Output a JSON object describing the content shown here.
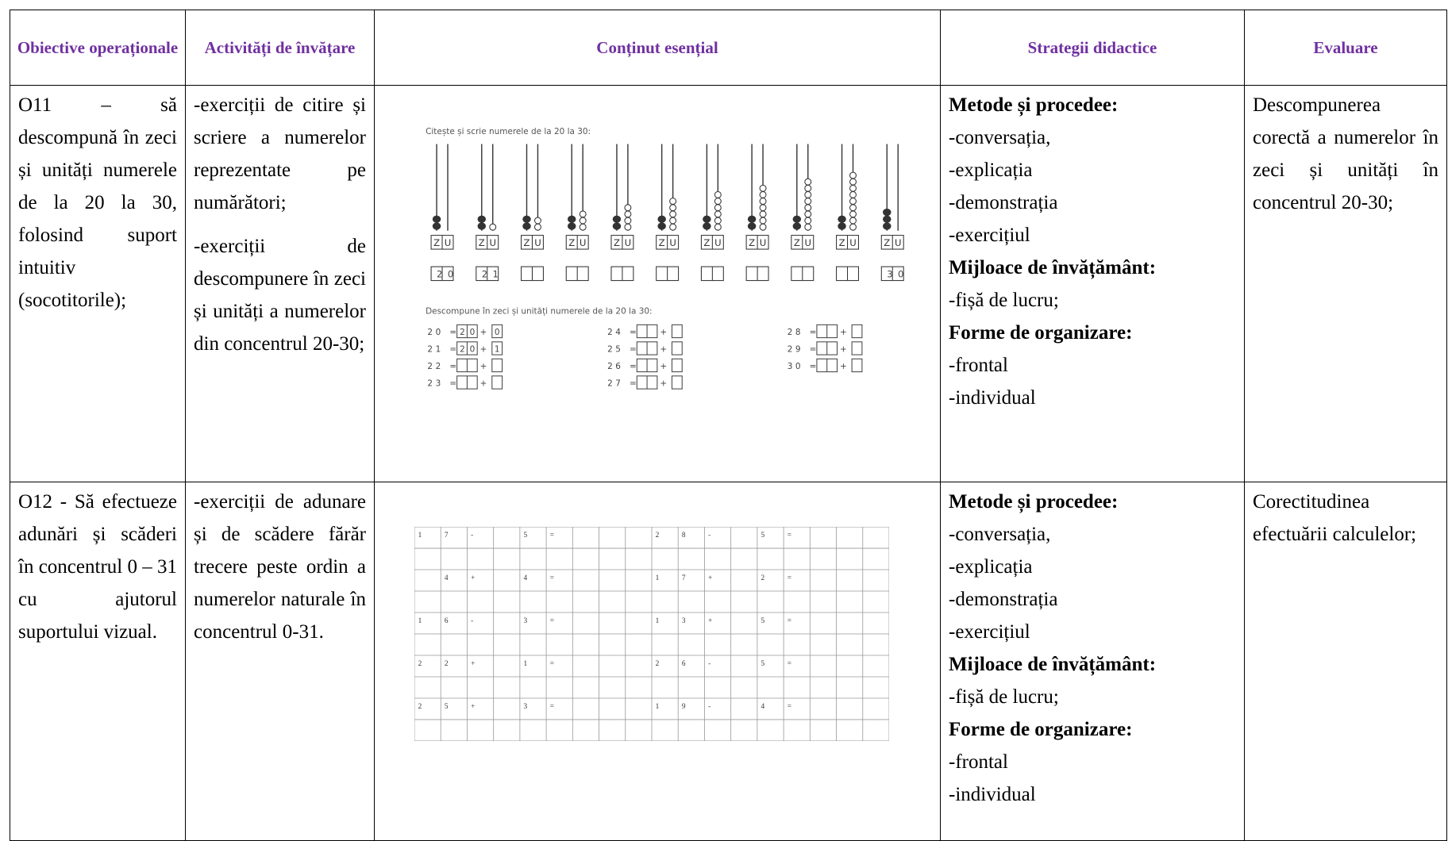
{
  "table": {
    "header": [
      "Obiective operaționale",
      "Activități de învățare",
      "Conținut esențial",
      "Strategii didactice",
      "Evaluare"
    ],
    "rows": [
      {
        "objective": "O11 – să descompună în zeci și unități numerele de la 20 la 30, folosind suport intuitiv (socotitorile);",
        "activities": [
          "-exerciții de citire și scriere a numerelor reprezentate pe numărători;",
          "-exerciții de descompunere în zeci și unități a numerelor din concentrul 20-30;"
        ],
        "content": {
          "title": "Citește și scrie numerele de la 20 la 30:",
          "labels": [
            "Z",
            "U"
          ],
          "abaci": [
            {
              "tens": 2,
              "units": 0
            },
            {
              "tens": 2,
              "units": 1
            },
            {
              "tens": 2,
              "units": 2
            },
            {
              "tens": 2,
              "units": 3
            },
            {
              "tens": 2,
              "units": 4
            },
            {
              "tens": 2,
              "units": 5
            },
            {
              "tens": 2,
              "units": 6
            },
            {
              "tens": 2,
              "units": 7
            },
            {
              "tens": 2,
              "units": 8
            },
            {
              "tens": 2,
              "units": 9
            },
            {
              "tens": 3,
              "units": 0
            }
          ],
          "written": [
            "20",
            "21",
            null,
            null,
            null,
            null,
            null,
            null,
            null,
            null,
            "30"
          ],
          "subtitle": "Descompune în zeci și unități numerele de la 20 la 30:",
          "equals": "=",
          "plus": "+",
          "equations": [
            {
              "number": "20",
              "tens": "20",
              "units": "0"
            },
            {
              "number": "21",
              "tens": "20",
              "units": "1"
            },
            {
              "number": "22"
            },
            {
              "number": "23"
            },
            {
              "number": "24"
            },
            {
              "number": "25"
            },
            {
              "number": "26"
            },
            {
              "number": "27"
            },
            {
              "number": "28"
            },
            {
              "number": "29"
            },
            {
              "number": "30"
            }
          ]
        },
        "strategies": [
          {
            "heading": "Metode și procedee:",
            "items": [
              "-conversația,",
              "-explicația",
              "-demonstrația",
              "-exercițiul"
            ]
          },
          {
            "heading": "Mijloace de învățământ:",
            "items": [
              "-fișă de lucru;"
            ]
          },
          {
            "heading": "Forme de organizare:",
            "items": [
              "-frontal",
              "-individual"
            ]
          }
        ],
        "evaluation": "Descompunerea corectă a numerelor în zeci și unități în concentrul 20-30;"
      },
      {
        "objective": "O12 - Să efectueze adunări și scăderi în concentrul 0 – 31 cu ajutorul suportului vizual.",
        "activities": [
          "-exerciții de adunare și de scădere fărăr trecere peste ordin a numerelor naturale în concentrul 0-31."
        ],
        "content": {
          "eq": "=",
          "grid": [
            [
              {
                "tens": "1",
                "units": "7",
                "op": "-",
                "b": "5"
              },
              {
                "tens": "2",
                "units": "8",
                "op": "-",
                "b": "5"
              }
            ],
            [
              {
                "units": "4",
                "op": "+",
                "b": "4"
              },
              {
                "tens": "1",
                "units": "7",
                "op": "+",
                "b": "2"
              }
            ],
            [
              {
                "tens": "1",
                "units": "6",
                "op": "-",
                "b": "3"
              },
              {
                "tens": "1",
                "units": "3",
                "op": "+",
                "b": "5"
              }
            ],
            [
              {
                "tens": "2",
                "units": "2",
                "op": "+",
                "b": "1"
              },
              {
                "tens": "2",
                "units": "6",
                "op": "-",
                "b": "5"
              }
            ],
            [
              {
                "tens": "2",
                "units": "5",
                "op": "+",
                "b": "3"
              },
              {
                "tens": "1",
                "units": "9",
                "op": "-",
                "b": "4"
              }
            ]
          ]
        },
        "strategies": [
          {
            "heading": "Metode și procedee:",
            "items": [
              "-conversația,",
              "-explicația",
              "-demonstrația",
              "-exercițiul"
            ]
          },
          {
            "heading": "Mijloace de învățământ:",
            "items": [
              "-fișă de lucru;"
            ]
          },
          {
            "heading": "Forme de organizare:",
            "items": [
              "-frontal",
              "-individual"
            ]
          }
        ],
        "evaluation": "Corectitudinea efectuării calculelor;"
      }
    ]
  }
}
